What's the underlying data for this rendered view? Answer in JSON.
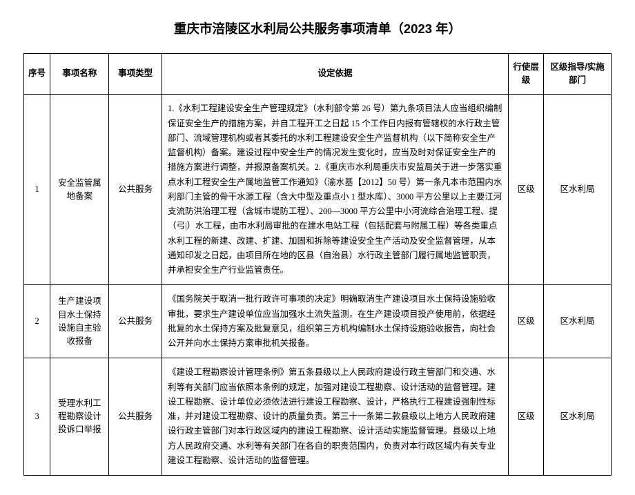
{
  "title": "重庆市涪陵区水利局公共服务事项清单（2023 年）",
  "columns": {
    "col0": "序号",
    "col1": "事项名称",
    "col2": "事项类型",
    "col3": "设定依据",
    "col4": "行使层级",
    "col5": "区级指导/实施部门"
  },
  "col_widths": {
    "col0": "4.5%",
    "col1": "10%",
    "col2": "9%",
    "col3": "59%",
    "col4": "6%",
    "col5": "11.5%"
  },
  "rows": [
    {
      "index": "1",
      "name": "安全监管属地备案",
      "type": "公共服务",
      "basis": "1.《水利工程建设安全生产管理规定》（水利部令第 26 号）第九条项目法人应当组织编制保证安全生产的措施方案，并自工程开工之日起 15 个工作日内报有管辖权的水行政主管部门、流域管理机构或者其委托的水利工程建设安全生产监督机构（以下简称安全生产监督机构）备案。建设过程中安全生产的情况发生变化时，应当及时对保证安全生产的措施方案进行调整，并报原备案机关。2.《重庆市水利局重庆市安监局关于进一步落实重点水利工程安全生产属地监管工作通知》（渝水基【2012】50 号）第一条凡本市范围内水利部门主管的骨干水源工程（含大中型及重点小 1 型水库）、3000 平方公里以上主要江河支流防洪治理工程（含城市堤防工程）、200—3000 平方公里中小河流综合治理工程、提（弓|）水工程，由市水利局审批的在建水电站工程（包括配套与附属工程）等各类重点水利工程的新建、改建、扩建、加固和拆除等建设安全生产活动及安全监督管理，从本通知印发之日起，由项目所在地的区县（自治县）水行政主管部门履行属地监管职责，并承担安全生产行业监管责任。",
      "level": "区级",
      "dept": "区水利局"
    },
    {
      "index": "2",
      "name": "生产建设项目水土保持设施自主验收报备",
      "type": "公共服务",
      "basis": "《国务院关于取消一批行政许可事项的决定》明确取消生产建设项目水土保持设施验收审批，要求生产建设单位应当加强水土流失监测，在生产建设项目投产使用前，依据经批复的水土保持方案及批复意见，组织第三方机构编制水土保持设施验收报告，向社会公开并向水土保持方案审批机关报备。",
      "level": "区级",
      "dept": "区水利局"
    },
    {
      "index": "3",
      "name": "受理水利工程勘察设计投诉口举报",
      "type": "公共服务",
      "basis": "《建设工程勘察设计管理条例》第五条县级以上人民政府建设行政主管部门和交通、水利等有关部门应当依照本条例的规定，加强对建设工程勘察、设计活动的监督管理。建设工程勘察、设计单位必须依法进行建设工程勘察、设计，严格执行工程建设强制性标准，并对建设工程勘察、设计的质量负责。第三十一条第二款县级以上地方人民政府建设行政主管部门对本行政区域内的建设工程勘察、设计活动实施监督管理。县级以上地方人民政府交通、水利等有关部门在各自的职责范围内，负责对本行政区域内有关专业建设工程勘察、设计活动的监督管理。",
      "level": "区级",
      "dept": "区水利局"
    }
  ]
}
